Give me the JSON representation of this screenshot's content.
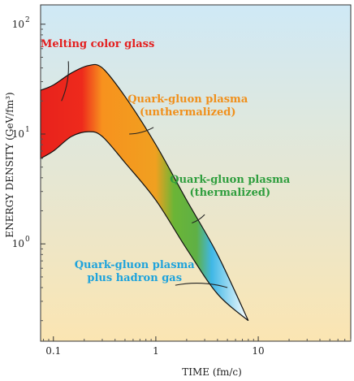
{
  "chart_data": {
    "type": "area",
    "title": "",
    "xlabel": "TIME (fm/c)",
    "ylabel": "ENERGY DENSITY (GeV/fm³)",
    "x_scale": "log",
    "y_scale": "log",
    "xlim": [
      0.075,
      80
    ],
    "ylim": [
      0.13,
      150
    ],
    "x_ticks": [
      {
        "value": 0.1,
        "label": "0.1"
      },
      {
        "value": 1,
        "label": "1"
      },
      {
        "value": 10,
        "label": "10"
      }
    ],
    "y_ticks": [
      {
        "value": 1,
        "label": "10",
        "exp": "0"
      },
      {
        "value": 10,
        "label": "10",
        "exp": "1"
      },
      {
        "value": 100,
        "label": "10",
        "exp": "2"
      }
    ],
    "band_upper": [
      {
        "x": 0.075,
        "y": 25
      },
      {
        "x": 0.1,
        "y": 28
      },
      {
        "x": 0.15,
        "y": 36
      },
      {
        "x": 0.22,
        "y": 42
      },
      {
        "x": 0.3,
        "y": 40
      },
      {
        "x": 0.5,
        "y": 22
      },
      {
        "x": 1.0,
        "y": 8
      },
      {
        "x": 2.0,
        "y": 2.5
      },
      {
        "x": 4.0,
        "y": 0.8
      },
      {
        "x": 8.0,
        "y": 0.2
      }
    ],
    "band_lower": [
      {
        "x": 0.075,
        "y": 6
      },
      {
        "x": 0.1,
        "y": 7
      },
      {
        "x": 0.15,
        "y": 9.5
      },
      {
        "x": 0.22,
        "y": 10.5
      },
      {
        "x": 0.3,
        "y": 9.5
      },
      {
        "x": 0.5,
        "y": 5.5
      },
      {
        "x": 1.0,
        "y": 2.5
      },
      {
        "x": 2.0,
        "y": 0.9
      },
      {
        "x": 4.0,
        "y": 0.35
      },
      {
        "x": 8.0,
        "y": 0.2
      }
    ],
    "phase_colors": [
      {
        "x": 0.075,
        "color": "#e8221c"
      },
      {
        "x": 0.19,
        "color": "#ee2a1c"
      },
      {
        "x": 0.3,
        "color": "#f7921e"
      },
      {
        "x": 1.0,
        "color": "#f0a020"
      },
      {
        "x": 1.5,
        "color": "#6bb536"
      },
      {
        "x": 2.5,
        "color": "#5fb045"
      },
      {
        "x": 3.5,
        "color": "#3fb7e6"
      },
      {
        "x": 8.0,
        "color": "#ffffff"
      }
    ],
    "annotations": [
      {
        "lines": [
          "Melting color glass"
        ],
        "color": "#e41e1e",
        "anchor": "start",
        "text_x": 0.075,
        "text_y": 62,
        "pointer_from": [
          0.14,
          46
        ],
        "pointer_to": [
          0.12,
          20
        ]
      },
      {
        "lines": [
          "Quark-gluon plasma",
          "(unthermalized)"
        ],
        "color": "#f0901c",
        "anchor": "middle",
        "text_x": 2.05,
        "text_y": 19.5,
        "pointer_from": [
          0.95,
          11.5
        ],
        "pointer_to": [
          0.55,
          10
        ]
      },
      {
        "lines": [
          "Quark-gluon plasma",
          "(thermalized)"
        ],
        "color": "#2f9e3e",
        "anchor": "middle",
        "text_x": 5.3,
        "text_y": 3.6,
        "pointer_from": [
          3.0,
          1.85
        ],
        "pointer_to": [
          2.25,
          1.55
        ]
      },
      {
        "lines": [
          "Quark-gluon plasma",
          "plus hadron gas"
        ],
        "color": "#1ea3dc",
        "anchor": "middle",
        "text_x": 0.62,
        "text_y": 0.6,
        "pointer_from": [
          1.55,
          0.42
        ],
        "pointer_to": [
          5.0,
          0.4
        ]
      }
    ],
    "background_gradient": [
      "#cfe9f6",
      "#fbe5b2"
    ],
    "grid": false
  }
}
